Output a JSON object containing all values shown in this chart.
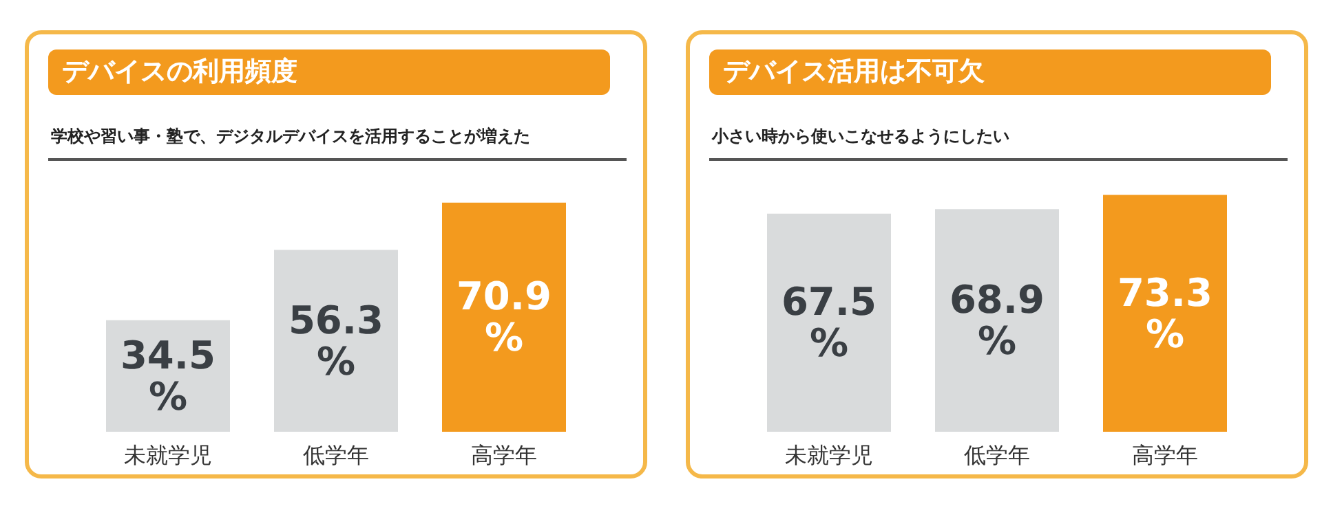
{
  "chart_data": [
    {
      "type": "bar",
      "title": "デバイスの利用頻度",
      "subtitle": "学校や習い事・塾で、デジタルデバイスを活用することが増えた",
      "categories": [
        "未就学児",
        "低学年",
        "高学年"
      ],
      "values": [
        34.5,
        56.3,
        70.9
      ],
      "colors": [
        "#d9dbdc",
        "#d9dbdc",
        "#f39a1e"
      ],
      "value_labels": [
        "34.5\n%",
        "56.3\n%",
        "70.9\n%"
      ]
    },
    {
      "type": "bar",
      "title": "デバイス活用は不可欠",
      "subtitle": "小さい時から使いこなせるようにしたい",
      "categories": [
        "未就学児",
        "低学年",
        "高学年"
      ],
      "values": [
        67.5,
        68.9,
        73.3
      ],
      "colors": [
        "#d9dbdc",
        "#d9dbdc",
        "#f39a1e"
      ],
      "value_labels": [
        "67.5\n%",
        "68.9\n%",
        "73.3\n%"
      ]
    }
  ]
}
